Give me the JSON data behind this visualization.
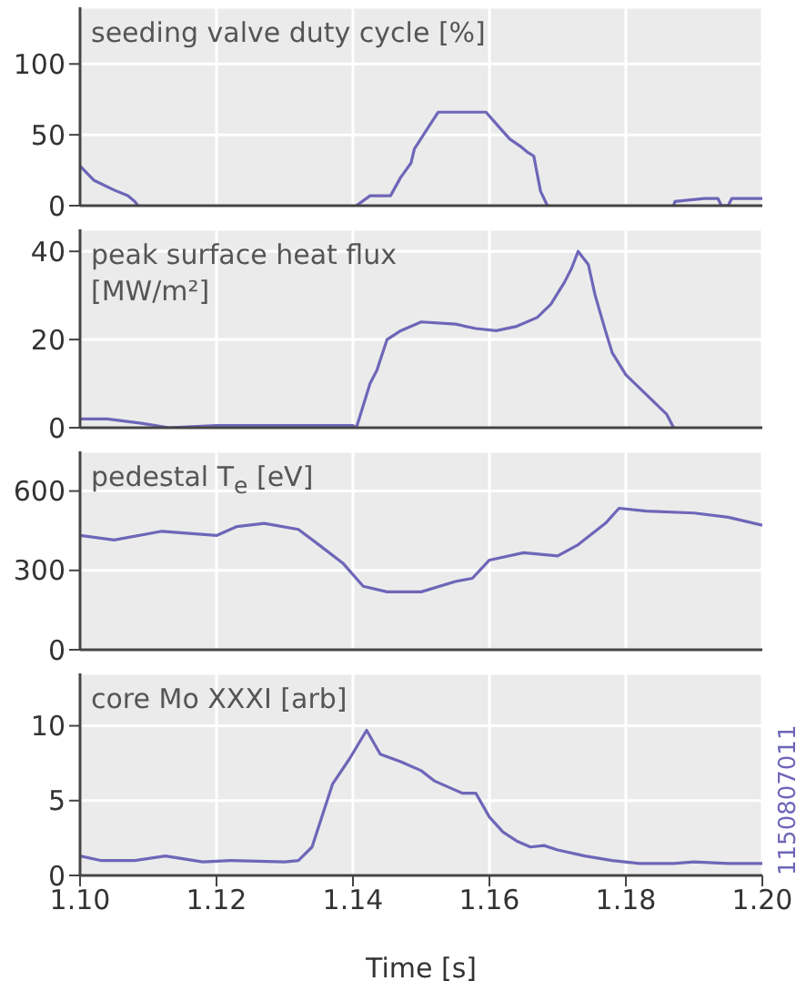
{
  "chart_data": [
    {
      "type": "line",
      "title": "seeding valve duty cycle [%]",
      "tick_labels": "y",
      "grid": true,
      "xlim": [
        1.1,
        1.2
      ],
      "xticks": [
        {
          "value": 1.1,
          "label": null
        },
        {
          "value": 1.12,
          "label": null
        },
        {
          "value": 1.14,
          "label": null
        },
        {
          "value": 1.16,
          "label": null
        },
        {
          "value": 1.18,
          "label": null
        },
        {
          "value": 1.2,
          "label": null
        }
      ],
      "ylim": [
        0,
        140
      ],
      "yticks": [
        0,
        50,
        100
      ],
      "color": "#6e66b8",
      "x": [
        1.1,
        1.102,
        1.105,
        1.107,
        1.108,
        1.1085,
        1.12,
        1.13,
        1.1405,
        1.1425,
        1.1455,
        1.147,
        1.1485,
        1.149,
        1.151,
        1.1525,
        1.1595,
        1.1615,
        1.163,
        1.1645,
        1.1655,
        1.1665,
        1.1675,
        1.1685,
        1.175,
        1.187,
        1.1872,
        1.1915,
        1.1935,
        1.194,
        1.195,
        1.1955,
        1.2
      ],
      "values": [
        28,
        18,
        11,
        7,
        3,
        0,
        null,
        null,
        0,
        7,
        7,
        20,
        30,
        40,
        55,
        66,
        66,
        55,
        47,
        42,
        38,
        35,
        10,
        0,
        null,
        0,
        3,
        5,
        5,
        0,
        0,
        5,
        5
      ]
    },
    {
      "type": "line",
      "title": "peak surface heat flux\n[MW/m²]",
      "tick_labels": "y",
      "grid": true,
      "xlim": [
        1.1,
        1.2
      ],
      "xticks": [
        {
          "value": 1.1,
          "label": null
        },
        {
          "value": 1.12,
          "label": null
        },
        {
          "value": 1.14,
          "label": null
        },
        {
          "value": 1.16,
          "label": null
        },
        {
          "value": 1.18,
          "label": null
        },
        {
          "value": 1.2,
          "label": null
        }
      ],
      "ylim": [
        0,
        45
      ],
      "yticks": [
        0,
        20,
        40
      ],
      "color": "#6e66b8",
      "x": [
        1.1,
        1.104,
        1.109,
        1.113,
        1.12,
        1.13,
        1.14,
        1.1405,
        1.1425,
        1.1435,
        1.145,
        1.147,
        1.15,
        1.155,
        1.158,
        1.161,
        1.164,
        1.167,
        1.169,
        1.171,
        1.172,
        1.173,
        1.1745,
        1.1755,
        1.177,
        1.178,
        1.18,
        1.182,
        1.184,
        1.186,
        1.187
      ],
      "values": [
        2,
        2,
        1,
        0,
        0.5,
        0.5,
        0.5,
        0,
        10,
        13,
        20,
        22,
        24,
        23.5,
        22.5,
        22,
        23,
        25,
        28,
        33,
        36,
        40,
        37,
        30,
        22,
        17,
        12,
        9,
        6,
        3,
        0
      ]
    },
    {
      "type": "line",
      "title": "pedestal T$_{e}$ [eV]",
      "tick_labels": "y",
      "grid": true,
      "xlim": [
        1.1,
        1.2
      ],
      "xticks": [
        {
          "value": 1.1,
          "label": null
        },
        {
          "value": 1.12,
          "label": null
        },
        {
          "value": 1.14,
          "label": null
        },
        {
          "value": 1.16,
          "label": null
        },
        {
          "value": 1.18,
          "label": null
        },
        {
          "value": 1.2,
          "label": null
        }
      ],
      "ylim": [
        0,
        750
      ],
      "yticks": [
        0,
        300,
        600
      ],
      "color": "#6e66b8",
      "x": [
        1.1,
        1.105,
        1.112,
        1.12,
        1.123,
        1.127,
        1.132,
        1.135,
        1.1385,
        1.1415,
        1.145,
        1.15,
        1.155,
        1.1575,
        1.16,
        1.165,
        1.17,
        1.173,
        1.177,
        1.179,
        1.183,
        1.19,
        1.195,
        1.2
      ],
      "values": [
        432,
        415,
        448,
        432,
        466,
        478,
        455,
        397,
        328,
        240,
        219,
        219,
        258,
        270,
        339,
        367,
        355,
        397,
        478,
        535,
        524,
        517,
        501,
        471
      ]
    },
    {
      "type": "line",
      "title": "core Mo XXXI [arb]",
      "xlabel": "Time [s]",
      "annotations": [
        "1150807011"
      ],
      "grid": true,
      "xlim": [
        1.1,
        1.2
      ],
      "xticks": [
        {
          "value": 1.1,
          "label": "1.10"
        },
        {
          "value": 1.12,
          "label": "1.12"
        },
        {
          "value": 1.14,
          "label": "1.14"
        },
        {
          "value": 1.16,
          "label": "1.16"
        },
        {
          "value": 1.18,
          "label": "1.18"
        },
        {
          "value": 1.2,
          "label": "1.20"
        }
      ],
      "ylim": [
        0,
        13.5
      ],
      "yticks": [
        0,
        5,
        10
      ],
      "color": "#6e66b8",
      "x": [
        1.1,
        1.103,
        1.108,
        1.1125,
        1.118,
        1.122,
        1.13,
        1.132,
        1.134,
        1.137,
        1.1395,
        1.142,
        1.144,
        1.147,
        1.15,
        1.152,
        1.1545,
        1.156,
        1.158,
        1.16,
        1.162,
        1.164,
        1.166,
        1.168,
        1.17,
        1.174,
        1.178,
        1.182,
        1.187,
        1.19,
        1.195,
        1.2
      ],
      "values": [
        1.3,
        1.0,
        1.0,
        1.3,
        0.9,
        1.0,
        0.9,
        1.0,
        1.9,
        6.1,
        7.8,
        9.7,
        8.1,
        7.6,
        7.0,
        6.3,
        5.8,
        5.5,
        5.5,
        3.9,
        2.9,
        2.3,
        1.9,
        2.0,
        1.7,
        1.3,
        1.0,
        0.8,
        0.8,
        0.9,
        0.8,
        0.8
      ]
    }
  ]
}
